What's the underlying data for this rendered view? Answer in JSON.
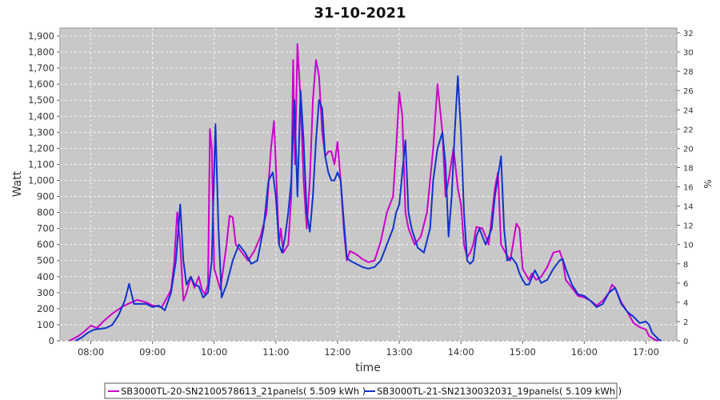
{
  "chart_data": {
    "type": "line",
    "title": "31-10-2021",
    "xlabel": "time",
    "ylabel": "Watt",
    "y2label": "%",
    "x_tick_labels": [
      "08:00",
      "09:00",
      "10:00",
      "11:00",
      "12:00",
      "13:00",
      "14:00",
      "15:00",
      "16:00",
      "17:00"
    ],
    "y_ticks": [
      0,
      100,
      200,
      300,
      400,
      500,
      600,
      700,
      800,
      900,
      1000,
      1100,
      1200,
      1300,
      1400,
      1500,
      1600,
      1700,
      1800,
      1900
    ],
    "y2_ticks": [
      0,
      2,
      4,
      6,
      8,
      10,
      12,
      14,
      16,
      18,
      20,
      22,
      24,
      26,
      28,
      30,
      32
    ],
    "xlim": [
      7.5,
      17.5
    ],
    "ylim": [
      0,
      1950
    ],
    "y2lim": [
      0,
      32.5
    ],
    "grid": true,
    "legend_position": "bottom",
    "plot_background": "#c8c8c8",
    "series": [
      {
        "name": "SB3000TL-20-SN2100578613_21panels( 5.509 kWh )",
        "color": "#cc00cc",
        "points": [
          [
            7.65,
            0
          ],
          [
            7.8,
            30
          ],
          [
            7.9,
            60
          ],
          [
            8.0,
            95
          ],
          [
            8.1,
            80
          ],
          [
            8.2,
            120
          ],
          [
            8.35,
            170
          ],
          [
            8.5,
            210
          ],
          [
            8.6,
            230
          ],
          [
            8.75,
            255
          ],
          [
            8.9,
            240
          ],
          [
            9.0,
            220
          ],
          [
            9.15,
            210
          ],
          [
            9.25,
            280
          ],
          [
            9.3,
            320
          ],
          [
            9.35,
            480
          ],
          [
            9.4,
            800
          ],
          [
            9.45,
            600
          ],
          [
            9.5,
            250
          ],
          [
            9.55,
            300
          ],
          [
            9.62,
            400
          ],
          [
            9.68,
            330
          ],
          [
            9.75,
            400
          ],
          [
            9.8,
            320
          ],
          [
            9.85,
            290
          ],
          [
            9.9,
            350
          ],
          [
            9.93,
            1320
          ],
          [
            9.96,
            1200
          ],
          [
            10.0,
            450
          ],
          [
            10.1,
            320
          ],
          [
            10.2,
            600
          ],
          [
            10.25,
            780
          ],
          [
            10.3,
            770
          ],
          [
            10.35,
            600
          ],
          [
            10.45,
            550
          ],
          [
            10.55,
            500
          ],
          [
            10.65,
            560
          ],
          [
            10.75,
            650
          ],
          [
            10.85,
            800
          ],
          [
            10.92,
            1200
          ],
          [
            10.97,
            1370
          ],
          [
            11.0,
            1100
          ],
          [
            11.05,
            600
          ],
          [
            11.08,
            700
          ],
          [
            11.12,
            550
          ],
          [
            11.2,
            600
          ],
          [
            11.25,
            900
          ],
          [
            11.28,
            1750
          ],
          [
            11.31,
            1100
          ],
          [
            11.35,
            1850
          ],
          [
            11.4,
            1500
          ],
          [
            11.45,
            1000
          ],
          [
            11.5,
            700
          ],
          [
            11.55,
            1000
          ],
          [
            11.6,
            1500
          ],
          [
            11.65,
            1750
          ],
          [
            11.7,
            1650
          ],
          [
            11.75,
            1300
          ],
          [
            11.8,
            1150
          ],
          [
            11.85,
            1180
          ],
          [
            11.9,
            1180
          ],
          [
            11.95,
            1100
          ],
          [
            12.0,
            1240
          ],
          [
            12.05,
            1000
          ],
          [
            12.1,
            700
          ],
          [
            12.15,
            500
          ],
          [
            12.2,
            560
          ],
          [
            12.3,
            540
          ],
          [
            12.4,
            510
          ],
          [
            12.5,
            490
          ],
          [
            12.6,
            500
          ],
          [
            12.7,
            620
          ],
          [
            12.8,
            800
          ],
          [
            12.9,
            900
          ],
          [
            12.95,
            1200
          ],
          [
            13.0,
            1550
          ],
          [
            13.05,
            1400
          ],
          [
            13.1,
            800
          ],
          [
            13.15,
            700
          ],
          [
            13.25,
            600
          ],
          [
            13.35,
            650
          ],
          [
            13.45,
            800
          ],
          [
            13.55,
            1200
          ],
          [
            13.62,
            1600
          ],
          [
            13.7,
            1300
          ],
          [
            13.75,
            900
          ],
          [
            13.8,
            1000
          ],
          [
            13.88,
            1200
          ],
          [
            13.95,
            950
          ],
          [
            14.0,
            850
          ],
          [
            14.05,
            600
          ],
          [
            14.1,
            520
          ],
          [
            14.15,
            550
          ],
          [
            14.2,
            600
          ],
          [
            14.25,
            710
          ],
          [
            14.35,
            700
          ],
          [
            14.4,
            650
          ],
          [
            14.45,
            600
          ],
          [
            14.55,
            950
          ],
          [
            14.6,
            1050
          ],
          [
            14.65,
            600
          ],
          [
            14.72,
            550
          ],
          [
            14.8,
            500
          ],
          [
            14.9,
            730
          ],
          [
            14.95,
            700
          ],
          [
            15.0,
            450
          ],
          [
            15.1,
            380
          ],
          [
            15.15,
            420
          ],
          [
            15.22,
            380
          ],
          [
            15.3,
            400
          ],
          [
            15.4,
            460
          ],
          [
            15.5,
            550
          ],
          [
            15.6,
            560
          ],
          [
            15.65,
            500
          ],
          [
            15.7,
            380
          ],
          [
            15.8,
            330
          ],
          [
            15.9,
            280
          ],
          [
            16.0,
            270
          ],
          [
            16.1,
            250
          ],
          [
            16.2,
            220
          ],
          [
            16.3,
            250
          ],
          [
            16.4,
            300
          ],
          [
            16.45,
            350
          ],
          [
            16.5,
            330
          ],
          [
            16.6,
            240
          ],
          [
            16.7,
            180
          ],
          [
            16.8,
            110
          ],
          [
            16.9,
            85
          ],
          [
            17.0,
            70
          ],
          [
            17.05,
            30
          ],
          [
            17.15,
            5
          ],
          [
            17.2,
            0
          ]
        ]
      },
      {
        "name": "SB3000TL-21-SN2130032031_19panels( 5.109 kWh )",
        "color": "#1133cc",
        "points": [
          [
            7.75,
            0
          ],
          [
            7.85,
            20
          ],
          [
            7.95,
            50
          ],
          [
            8.05,
            70
          ],
          [
            8.15,
            75
          ],
          [
            8.25,
            80
          ],
          [
            8.35,
            100
          ],
          [
            8.45,
            160
          ],
          [
            8.55,
            250
          ],
          [
            8.62,
            355
          ],
          [
            8.7,
            230
          ],
          [
            8.8,
            230
          ],
          [
            8.9,
            230
          ],
          [
            9.0,
            210
          ],
          [
            9.1,
            220
          ],
          [
            9.2,
            190
          ],
          [
            9.3,
            300
          ],
          [
            9.38,
            500
          ],
          [
            9.45,
            850
          ],
          [
            9.5,
            500
          ],
          [
            9.55,
            350
          ],
          [
            9.62,
            400
          ],
          [
            9.68,
            350
          ],
          [
            9.75,
            340
          ],
          [
            9.82,
            270
          ],
          [
            9.9,
            300
          ],
          [
            9.96,
            500
          ],
          [
            10.02,
            1350
          ],
          [
            10.07,
            700
          ],
          [
            10.12,
            270
          ],
          [
            10.2,
            350
          ],
          [
            10.3,
            500
          ],
          [
            10.4,
            600
          ],
          [
            10.5,
            550
          ],
          [
            10.6,
            480
          ],
          [
            10.7,
            500
          ],
          [
            10.8,
            700
          ],
          [
            10.88,
            1000
          ],
          [
            10.95,
            1050
          ],
          [
            11.0,
            900
          ],
          [
            11.05,
            600
          ],
          [
            11.1,
            550
          ],
          [
            11.15,
            650
          ],
          [
            11.2,
            800
          ],
          [
            11.25,
            1000
          ],
          [
            11.3,
            1500
          ],
          [
            11.35,
            900
          ],
          [
            11.4,
            1560
          ],
          [
            11.45,
            1250
          ],
          [
            11.5,
            800
          ],
          [
            11.55,
            680
          ],
          [
            11.6,
            900
          ],
          [
            11.65,
            1250
          ],
          [
            11.7,
            1500
          ],
          [
            11.75,
            1450
          ],
          [
            11.8,
            1150
          ],
          [
            11.85,
            1050
          ],
          [
            11.9,
            1000
          ],
          [
            11.95,
            1000
          ],
          [
            12.0,
            1050
          ],
          [
            12.05,
            1000
          ],
          [
            12.1,
            750
          ],
          [
            12.15,
            520
          ],
          [
            12.2,
            500
          ],
          [
            12.3,
            480
          ],
          [
            12.4,
            460
          ],
          [
            12.5,
            450
          ],
          [
            12.6,
            460
          ],
          [
            12.7,
            500
          ],
          [
            12.8,
            600
          ],
          [
            12.9,
            700
          ],
          [
            12.95,
            800
          ],
          [
            13.0,
            850
          ],
          [
            13.05,
            1050
          ],
          [
            13.1,
            1250
          ],
          [
            13.15,
            800
          ],
          [
            13.2,
            700
          ],
          [
            13.3,
            580
          ],
          [
            13.4,
            550
          ],
          [
            13.5,
            700
          ],
          [
            13.55,
            1000
          ],
          [
            13.62,
            1200
          ],
          [
            13.7,
            1300
          ],
          [
            13.75,
            1100
          ],
          [
            13.8,
            650
          ],
          [
            13.85,
            900
          ],
          [
            13.9,
            1300
          ],
          [
            13.95,
            1650
          ],
          [
            14.0,
            1300
          ],
          [
            14.05,
            800
          ],
          [
            14.1,
            500
          ],
          [
            14.15,
            480
          ],
          [
            14.2,
            500
          ],
          [
            14.25,
            650
          ],
          [
            14.3,
            700
          ],
          [
            14.35,
            650
          ],
          [
            14.4,
            600
          ],
          [
            14.5,
            700
          ],
          [
            14.55,
            900
          ],
          [
            14.65,
            1150
          ],
          [
            14.7,
            700
          ],
          [
            14.75,
            500
          ],
          [
            14.82,
            520
          ],
          [
            14.9,
            480
          ],
          [
            14.95,
            420
          ],
          [
            15.0,
            380
          ],
          [
            15.05,
            350
          ],
          [
            15.1,
            350
          ],
          [
            15.2,
            440
          ],
          [
            15.3,
            360
          ],
          [
            15.4,
            380
          ],
          [
            15.5,
            450
          ],
          [
            15.6,
            500
          ],
          [
            15.65,
            510
          ],
          [
            15.7,
            450
          ],
          [
            15.8,
            350
          ],
          [
            15.9,
            290
          ],
          [
            16.0,
            280
          ],
          [
            16.1,
            250
          ],
          [
            16.2,
            210
          ],
          [
            16.3,
            230
          ],
          [
            16.4,
            300
          ],
          [
            16.5,
            330
          ],
          [
            16.6,
            230
          ],
          [
            16.7,
            180
          ],
          [
            16.8,
            150
          ],
          [
            16.9,
            110
          ],
          [
            17.0,
            120
          ],
          [
            17.05,
            100
          ],
          [
            17.1,
            50
          ],
          [
            17.2,
            10
          ],
          [
            17.25,
            0
          ]
        ]
      }
    ]
  }
}
